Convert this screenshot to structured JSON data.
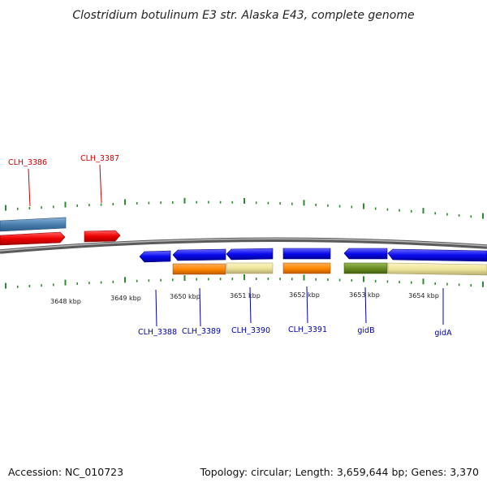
{
  "title": "Clostridium botulinum E3 str. Alaska E43, complete genome",
  "footer": {
    "accession": "Accession: NC_010723",
    "topology": "Topology: circular; Length: 3,659,644 bp; Genes: 3,370"
  },
  "colors": {
    "backbone": "#808080",
    "tick": "#2e8b2e",
    "red_label": "#cc0000",
    "blue_label": "#0000aa",
    "cds_forward": "#ee1111",
    "cds_forward_alt": "#4a7fb0",
    "cds_reverse": "#1111ee",
    "cog_orange": "#ff8800",
    "cog_khaki": "#eee49a",
    "cog_olive": "#6b8e23"
  },
  "kbp_labels": [
    "3648 kbp",
    "3649 kbp",
    "3650 kbp",
    "3651 kbp",
    "3652 kbp",
    "3653 kbp",
    "3654 kbp"
  ],
  "top_genes": [
    "CLH_3386",
    "CLH_3387"
  ],
  "bottom_genes": [
    "CLH_3388",
    "CLH_3389",
    "CLH_3390",
    "CLH_3391",
    "gidB",
    "gidA"
  ]
}
